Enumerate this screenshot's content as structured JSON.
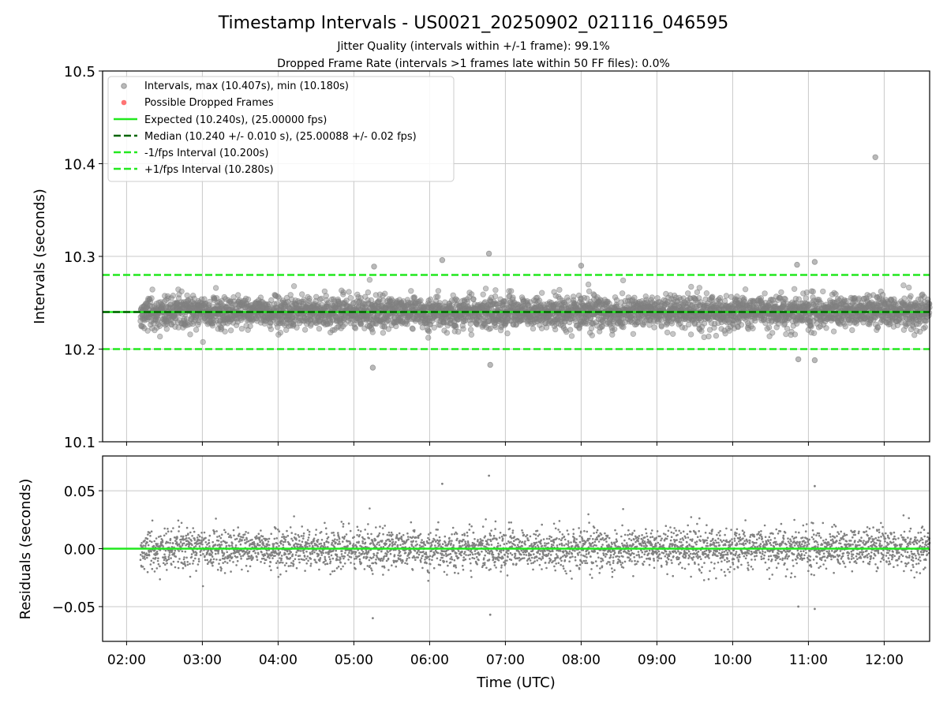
{
  "figure": {
    "title": "Timestamp Intervals - US0021_20250902_021116_046595",
    "subtitle_1": "Jitter Quality (intervals within +/-1 frame): 99.1%",
    "subtitle_2": "Dropped Frame Rate (intervals >1 frames late within 50 FF files): 0.0%"
  },
  "colors": {
    "points": "#808080",
    "dropped": "#ff5c5c",
    "bright_green": "#22e81f",
    "dark_green": "#006400",
    "grid": "#c8c8c8"
  },
  "chart_data": [
    {
      "type": "scatter",
      "panel": "intervals",
      "ylabel": "Intervals (seconds)",
      "xlim": [
        "01:41",
        "12:36"
      ],
      "ylim": [
        10.1,
        10.5
      ],
      "yticks": [
        "10.1",
        "10.2",
        "10.3",
        "10.4",
        "10.5"
      ],
      "ytick_values": [
        10.1,
        10.2,
        10.3,
        10.4,
        10.5
      ],
      "grid": true,
      "legend_position": "upper-left",
      "legend": [
        {
          "label": "Intervals, max (10.407s), min (10.180s)",
          "style": "marker-gray"
        },
        {
          "label": "Possible Dropped Frames",
          "style": "marker-red"
        },
        {
          "label": "Expected (10.240s), (25.00000 fps)",
          "style": "solid-bright-green"
        },
        {
          "label": "Median (10.240 +/- 0.010 s), (25.00088 +/- 0.02 fps)",
          "style": "dashed-dark-green"
        },
        {
          "label": "-1/fps Interval (10.200s)",
          "style": "dashed-bright-green"
        },
        {
          "label": "+1/fps Interval (10.280s)",
          "style": "dashed-bright-green"
        }
      ],
      "reference_lines": [
        {
          "name": "Expected",
          "y": 10.24,
          "style": "solid",
          "color": "#22e81f"
        },
        {
          "name": "Median",
          "y": 10.24,
          "style": "dashed",
          "color": "#006400"
        },
        {
          "name": "-1/fps Interval",
          "y": 10.2,
          "style": "dashed",
          "color": "#22e81f"
        },
        {
          "name": "+1/fps Interval",
          "y": 10.28,
          "style": "dashed",
          "color": "#22e81f"
        }
      ],
      "series_stats": {
        "count_approx": 3840,
        "x_start": "02:11",
        "x_end": "12:36",
        "median": 10.24,
        "std": 0.01,
        "max": 10.407,
        "min": 10.18
      },
      "notable_points": [
        {
          "x": "11:53",
          "y": 10.407
        },
        {
          "x": "05:15",
          "y": 10.18
        },
        {
          "x": "06:48",
          "y": 10.183
        },
        {
          "x": "06:47",
          "y": 10.303
        },
        {
          "x": "06:10",
          "y": 10.296
        },
        {
          "x": "11:05",
          "y": 10.294
        },
        {
          "x": "10:51",
          "y": 10.291
        },
        {
          "x": "08:00",
          "y": 10.29
        },
        {
          "x": "05:16",
          "y": 10.289
        },
        {
          "x": "10:52",
          "y": 10.189
        },
        {
          "x": "11:05",
          "y": 10.188
        }
      ]
    },
    {
      "type": "scatter",
      "panel": "residuals",
      "xlabel": "Time (UTC)",
      "ylabel": "Residuals (seconds)",
      "xlim": [
        "01:41",
        "12:36"
      ],
      "xticks": [
        "02:00",
        "03:00",
        "04:00",
        "05:00",
        "06:00",
        "07:00",
        "08:00",
        "09:00",
        "10:00",
        "11:00",
        "12:00"
      ],
      "ylim": [
        -0.08,
        0.08
      ],
      "yticks": [
        "−0.05",
        "0.00",
        "0.05"
      ],
      "ytick_values": [
        -0.05,
        0.0,
        0.05
      ],
      "grid": true,
      "reference_lines": [
        {
          "name": "zero",
          "y": 0.0,
          "style": "solid",
          "color": "#22e81f"
        }
      ],
      "series_stats": {
        "count_approx": 3840,
        "std": 0.01,
        "max": 0.063,
        "min": -0.06
      },
      "notable_points": [
        {
          "x": "06:47",
          "y": 0.063
        },
        {
          "x": "06:10",
          "y": 0.056
        },
        {
          "x": "11:05",
          "y": 0.054
        },
        {
          "x": "05:15",
          "y": -0.06
        },
        {
          "x": "06:48",
          "y": -0.057
        },
        {
          "x": "11:05",
          "y": -0.052
        },
        {
          "x": "10:52",
          "y": -0.05
        }
      ]
    }
  ]
}
